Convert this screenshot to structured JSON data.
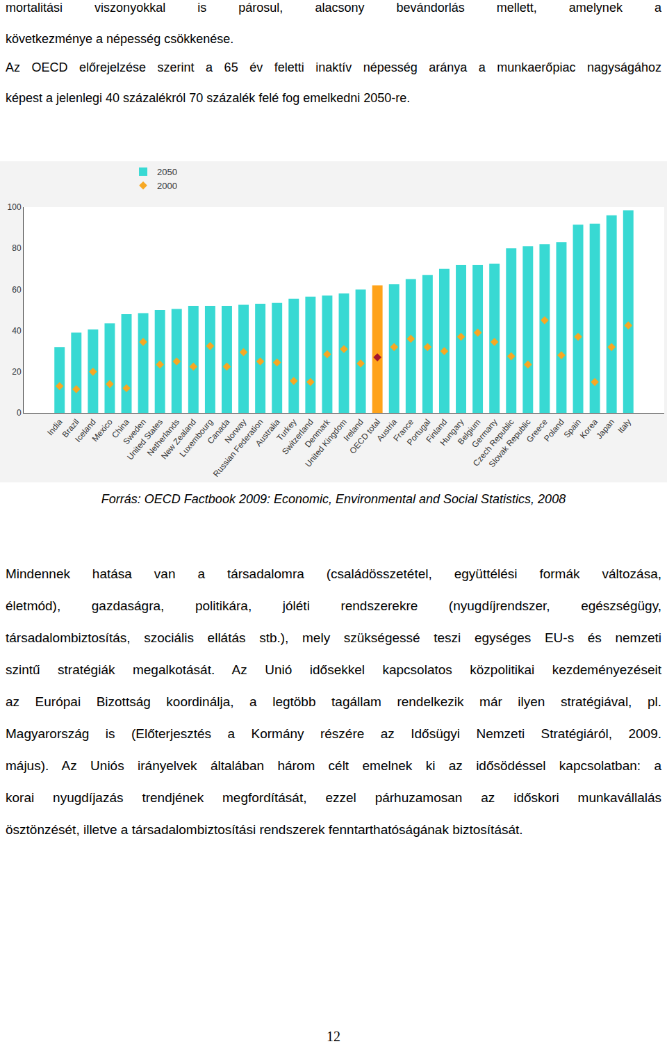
{
  "document": {
    "paragraphs": [
      {
        "lines": [
          "mortalitási viszonyokkal is párosul, alacsony bevándorlás mellett, amelynek a",
          "következménye a népesség csökkenése."
        ]
      },
      {
        "lines": [
          "Az OECD előrejelzése szerint a 65 év feletti inaktív népesség aránya a munkaerőpiac nagyságához",
          "képest a jelenlegi 40 százalékról 70 százalék felé fog emelkedni 2050-re."
        ]
      },
      {
        "lines": [
          "Mindennek hatása van a társadalomra (családösszetétel, együttélési formák változása,",
          "életmód), gazdaságra, politikára, jóléti rendszerekre (nyugdíjrendszer, egészségügy,",
          "társadalombiztosítás, szociális ellátás stb.), mely szükségessé teszi egységes EU-s és nemzeti",
          "szintű stratégiák megalkotását. Az Unió idősekkel kapcsolatos közpolitikai kezdeményezéseit",
          "az Európai Bizottság koordinálja, a legtöbb tagállam rendelkezik már ilyen stratégiával, pl.",
          "Magyarország is (Előterjesztés a Kormány részére az Idősügyi Nemzeti Stratégiáról, 2009.",
          "május). Az Uniós irányelvek általában három célt emelnek ki az idősödéssel kapcsolatban: a",
          "korai nyugdíjazás trendjének megfordítását, ezzel párhuzamosan az időskori munkavállalás",
          "ösztönzését, illetve a társadalombiztosítási rendszerek fenntarthatóságának biztosítását."
        ]
      }
    ],
    "caption": "Forrás: OECD Factbook 2009: Economic, Environmental and Social Statistics, 2008",
    "page_number": "12"
  },
  "chart_data": {
    "type": "bar",
    "categories": [
      "India",
      "Brazil",
      "Iceland",
      "Mexico",
      "China",
      "Sweden",
      "United States",
      "Netherlands",
      "New Zealand",
      "Luxembourg",
      "Canada",
      "Norway",
      "Russian Federation",
      "Australia",
      "Turkey",
      "Switzerland",
      "Denmark",
      "United Kingdom",
      "Ireland",
      "OECD total",
      "Austria",
      "France",
      "Portugal",
      "Finland",
      "Hungary",
      "Belgium",
      "Germany",
      "Czech Republic",
      "Slovak Republic",
      "Greece",
      "Poland",
      "Spain",
      "Korea",
      "Japan",
      "Italy"
    ],
    "series": [
      {
        "name": "2050",
        "type": "bar",
        "values": [
          32,
          39,
          40.5,
          43.5,
          48,
          48.5,
          50,
          50.5,
          52,
          52,
          52,
          52.5,
          53,
          53.5,
          55.5,
          56.5,
          57,
          58,
          60,
          62,
          62.5,
          65,
          67,
          70,
          72,
          72,
          72.5,
          80,
          81,
          82,
          83,
          91.5,
          92,
          96,
          98.5
        ],
        "colors": [
          "#38d9d3",
          "#38d9d3",
          "#38d9d3",
          "#38d9d3",
          "#38d9d3",
          "#38d9d3",
          "#38d9d3",
          "#38d9d3",
          "#38d9d3",
          "#38d9d3",
          "#38d9d3",
          "#38d9d3",
          "#38d9d3",
          "#38d9d3",
          "#38d9d3",
          "#38d9d3",
          "#38d9d3",
          "#38d9d3",
          "#38d9d3",
          "#ffa31a",
          "#38d9d3",
          "#38d9d3",
          "#38d9d3",
          "#38d9d3",
          "#38d9d3",
          "#38d9d3",
          "#38d9d3",
          "#38d9d3",
          "#38d9d3",
          "#38d9d3",
          "#38d9d3",
          "#38d9d3",
          "#38d9d3",
          "#38d9d3",
          "#38d9d3"
        ]
      },
      {
        "name": "2000",
        "type": "scatter",
        "marker": "diamond",
        "values": [
          13,
          11.5,
          20,
          14,
          12,
          34.5,
          23.5,
          25,
          22.5,
          32.5,
          22.5,
          29.5,
          25,
          24.5,
          15.5,
          15,
          28.5,
          31,
          24,
          27,
          32,
          36,
          32,
          30,
          37,
          39,
          34.5,
          27.5,
          23.5,
          45,
          28,
          37,
          15,
          32,
          42.5
        ],
        "colors": [
          "#f7a823",
          "#f7a823",
          "#f7a823",
          "#f7a823",
          "#f7a823",
          "#f7a823",
          "#f7a823",
          "#f7a823",
          "#f7a823",
          "#f7a823",
          "#f7a823",
          "#f7a823",
          "#f7a823",
          "#f7a823",
          "#f7a823",
          "#f7a823",
          "#f7a823",
          "#f7a823",
          "#f7a823",
          "#a5162a",
          "#f7a823",
          "#f7a823",
          "#f7a823",
          "#f7a823",
          "#f7a823",
          "#f7a823",
          "#f7a823",
          "#f7a823",
          "#f7a823",
          "#f7a823",
          "#f7a823",
          "#f7a823",
          "#f7a823",
          "#f7a823",
          "#f7a823"
        ]
      }
    ],
    "ylim": [
      0,
      100
    ],
    "yticks": [
      0,
      20,
      40,
      60,
      80,
      100
    ],
    "grid": false,
    "legend": "top"
  }
}
